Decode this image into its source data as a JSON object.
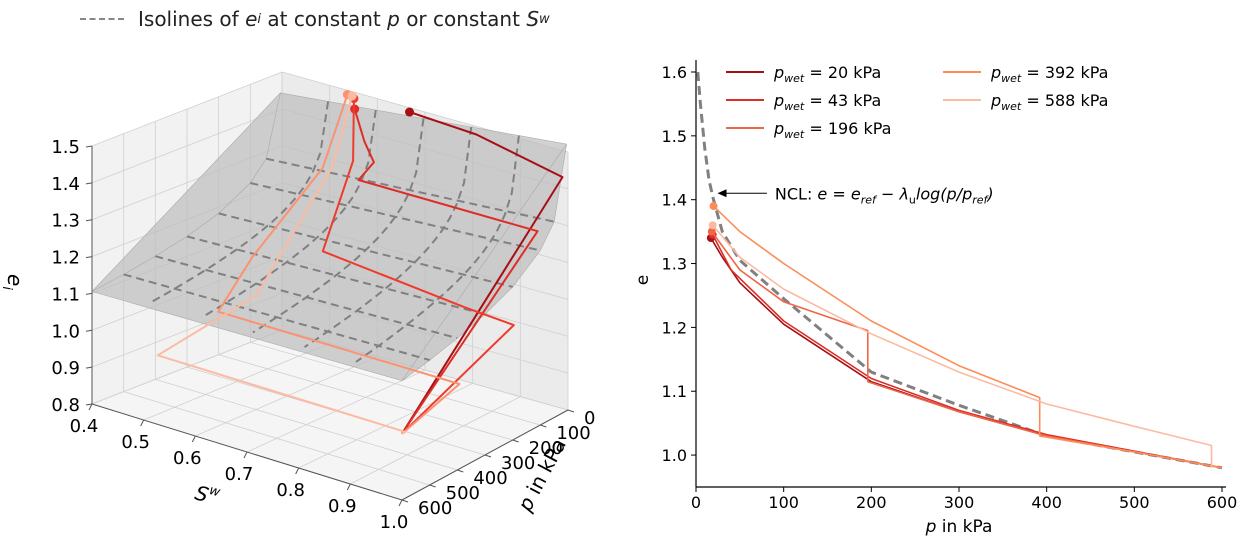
{
  "figure_legend": {
    "pre": "Isolines of",
    "e_sym": "e",
    "e_sub": "i",
    "mid": "at constant",
    "p_sym": "p",
    "or_text": "or constant",
    "s_sym": "S",
    "s_sup": "w"
  },
  "chart_data": [
    {
      "type": "surface",
      "xlabel": "Sw",
      "xlabel_sym": "S",
      "xlabel_sup": "w",
      "ylabel": "p in kPa",
      "ylabel_sym": "p",
      "ylabel_rest": " in kPa",
      "zlabel": "ei",
      "zlabel_sym": "e",
      "zlabel_sub": "i",
      "xlim": [
        0.4,
        1.0
      ],
      "ylim": [
        0,
        600
      ],
      "zlim": [
        0.8,
        1.5
      ],
      "x_ticks": [
        {
          "value": 0.4,
          "label": "0.4"
        },
        {
          "value": 0.5,
          "label": "0.5"
        },
        {
          "value": 0.6,
          "label": "0.6"
        },
        {
          "value": 0.7,
          "label": "0.7"
        },
        {
          "value": 0.8,
          "label": "0.8"
        },
        {
          "value": 0.9,
          "label": "0.9"
        },
        {
          "value": 1.0,
          "label": "1.0"
        }
      ],
      "y_ticks": [
        {
          "value": 0,
          "label": "0"
        },
        {
          "value": 100,
          "label": "100"
        },
        {
          "value": 200,
          "label": "200"
        },
        {
          "value": 300,
          "label": "300"
        },
        {
          "value": 400,
          "label": "400"
        },
        {
          "value": 500,
          "label": "500"
        },
        {
          "value": 600,
          "label": "600"
        }
      ],
      "z_ticks": [
        {
          "value": 0.8,
          "label": "0.8"
        },
        {
          "value": 0.9,
          "label": "0.9"
        },
        {
          "value": 1.0,
          "label": "1.0"
        },
        {
          "value": 1.1,
          "label": "1.1"
        },
        {
          "value": 1.2,
          "label": "1.2"
        },
        {
          "value": 1.3,
          "label": "1.3"
        },
        {
          "value": 1.4,
          "label": "1.4"
        },
        {
          "value": 1.5,
          "label": "1.5"
        }
      ],
      "surface_color": "#bdbdbd",
      "isoline_color": "#808080",
      "isolines_constant_p": [
        50,
        100,
        200,
        300,
        400,
        500
      ],
      "isolines_constant_sw": [
        0.5,
        0.6,
        0.7,
        0.8,
        0.9
      ],
      "series": [
        {
          "name": "20 kPa",
          "color": "#a50f15",
          "points": [
            [
              0.68,
              20,
              1.5
            ],
            [
              0.82,
              20,
              1.49
            ],
            [
              1.0,
              20,
              1.44
            ],
            [
              1.0,
              120,
              1.36
            ],
            [
              1.0,
              600,
              0.98
            ]
          ]
        },
        {
          "name": "43 kPa",
          "color": "#de2d26",
          "points": [
            [
              0.58,
              43,
              1.48
            ],
            [
              0.6,
              43,
              1.4
            ],
            [
              0.62,
              43,
              1.35
            ],
            [
              0.63,
              110,
              1.33
            ],
            [
              1.0,
              110,
              1.33
            ],
            [
              1.0,
              600,
              0.98
            ]
          ]
        },
        {
          "name": "196 kPa",
          "color": "#ef3b2c",
          "points": [
            [
              0.57,
              30,
              1.5
            ],
            [
              0.6,
              80,
              1.36
            ],
            [
              0.61,
              196,
              1.16
            ],
            [
              0.9,
              196,
              1.12
            ],
            [
              1.0,
              196,
              1.11
            ],
            [
              1.0,
              600,
              0.98
            ]
          ]
        },
        {
          "name": "392 kPa",
          "color": "#fc9272",
          "points": [
            [
              0.55,
              20,
              1.5
            ],
            [
              0.55,
              100,
              1.33
            ],
            [
              0.5,
              250,
              1.12
            ],
            [
              0.52,
              392,
              1.03
            ],
            [
              1.0,
              392,
              1.03
            ],
            [
              1.0,
              600,
              0.98
            ]
          ]
        },
        {
          "name": "588 kPa",
          "color": "#fcbba1",
          "points": [
            [
              0.56,
              20,
              1.5
            ],
            [
              0.57,
              100,
              1.34
            ],
            [
              0.54,
              300,
              1.05
            ],
            [
              0.52,
              588,
              0.98
            ],
            [
              1.0,
              588,
              0.98
            ],
            [
              1.0,
              600,
              0.98
            ]
          ]
        }
      ]
    },
    {
      "type": "line",
      "xlabel_sym": "p",
      "xlabel_rest": " in kPa",
      "xlabel": "p in kPa",
      "ylabel": "e",
      "xlim": [
        0,
        600
      ],
      "ylim": [
        0.95,
        1.6
      ],
      "x_ticks": [
        {
          "value": 0,
          "label": "0"
        },
        {
          "value": 100,
          "label": "100"
        },
        {
          "value": 200,
          "label": "200"
        },
        {
          "value": 300,
          "label": "300"
        },
        {
          "value": 400,
          "label": "400"
        },
        {
          "value": 500,
          "label": "500"
        },
        {
          "value": 600,
          "label": "600"
        }
      ],
      "y_ticks": [
        {
          "value": 1.0,
          "label": "1.0"
        },
        {
          "value": 1.1,
          "label": "1.1"
        },
        {
          "value": 1.2,
          "label": "1.2"
        },
        {
          "value": 1.3,
          "label": "1.3"
        },
        {
          "value": 1.4,
          "label": "1.4"
        },
        {
          "value": 1.5,
          "label": "1.5"
        },
        {
          "value": 1.6,
          "label": "1.6"
        }
      ],
      "grid": false,
      "legend_placement": "top",
      "ncl": {
        "color": "#808080",
        "points": [
          [
            2,
            1.6
          ],
          [
            5,
            1.55
          ],
          [
            10,
            1.48
          ],
          [
            15,
            1.43
          ],
          [
            20,
            1.4
          ],
          [
            30,
            1.35
          ],
          [
            50,
            1.305
          ],
          [
            100,
            1.245
          ],
          [
            200,
            1.13
          ],
          [
            300,
            1.078
          ],
          [
            400,
            1.03
          ],
          [
            500,
            1.005
          ],
          [
            600,
            0.98
          ]
        ]
      },
      "annotation": {
        "prefix": "NCL: ",
        "text": "NCL: e = e_ref − λ_u log(p/p_ref)",
        "point_at": [
          20,
          1.41
        ],
        "text_at": [
          90,
          1.41
        ]
      },
      "series": [
        {
          "name": "p_wet = 20 kPa",
          "label_value": "= 20 kPa",
          "color": "#a50f15",
          "start": [
            17,
            1.34
          ],
          "points": [
            [
              17,
              1.34
            ],
            [
              30,
              1.31
            ],
            [
              50,
              1.27
            ],
            [
              100,
              1.205
            ],
            [
              200,
              1.115
            ],
            [
              300,
              1.068
            ],
            [
              400,
              1.03
            ],
            [
              500,
              1.005
            ],
            [
              600,
              0.98
            ]
          ]
        },
        {
          "name": "p_wet = 43 kPa",
          "label_value": "= 43 kPa",
          "color": "#de2d26",
          "start": [
            19,
            1.345
          ],
          "points": [
            [
              19,
              1.345
            ],
            [
              40,
              1.29
            ],
            [
              100,
              1.21
            ],
            [
              200,
              1.12
            ],
            [
              300,
              1.07
            ],
            [
              400,
              1.032
            ],
            [
              500,
              1.006
            ],
            [
              600,
              0.98
            ]
          ]
        },
        {
          "name": "p_wet = 196 kPa",
          "label_value": "= 196 kPa",
          "color": "#ef6548",
          "start": [
            18,
            1.35
          ],
          "points": [
            [
              18,
              1.35
            ],
            [
              50,
              1.29
            ],
            [
              100,
              1.24
            ],
            [
              196,
              1.195
            ],
            [
              196,
              1.115
            ],
            [
              300,
              1.068
            ],
            [
              400,
              1.03
            ],
            [
              500,
              1.005
            ],
            [
              600,
              0.98
            ]
          ]
        },
        {
          "name": "p_wet = 392 kPa",
          "label_value": "= 392 kPa",
          "color": "#fc8d59",
          "start": [
            20,
            1.39
          ],
          "points": [
            [
              20,
              1.39
            ],
            [
              50,
              1.35
            ],
            [
              100,
              1.3
            ],
            [
              200,
              1.21
            ],
            [
              300,
              1.14
            ],
            [
              392,
              1.09
            ],
            [
              392,
              1.03
            ],
            [
              500,
              1.005
            ],
            [
              600,
              0.98
            ]
          ]
        },
        {
          "name": "p_wet = 588 kPa",
          "label_value": "= 588 kPa",
          "color": "#fcbba1",
          "start": [
            19,
            1.36
          ],
          "points": [
            [
              19,
              1.36
            ],
            [
              50,
              1.31
            ],
            [
              100,
              1.26
            ],
            [
              200,
              1.19
            ],
            [
              300,
              1.13
            ],
            [
              400,
              1.08
            ],
            [
              500,
              1.045
            ],
            [
              588,
              1.015
            ],
            [
              588,
              0.98
            ]
          ]
        }
      ]
    }
  ]
}
